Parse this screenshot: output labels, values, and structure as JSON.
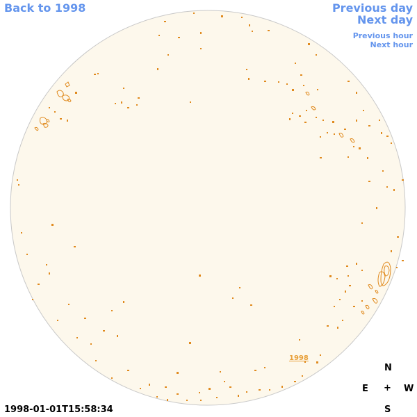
{
  "nav": {
    "back": "Back to 1998",
    "previous_day": "Previous day",
    "next_day": "Next day",
    "previous_hour": "Previous hour",
    "next_hour": "Next hour"
  },
  "timestamp": "1998-01-01T15:58:34",
  "compass": {
    "north": "N",
    "east": "E",
    "center": "+",
    "west": "W",
    "south": "S"
  },
  "region_label": "1998",
  "colors": {
    "link": "#6495ed",
    "disk_fill": "#fdf8ec",
    "disk_edge": "#c8c8c8",
    "contour": "#e08a1e",
    "region_label": "#e8a03a"
  }
}
